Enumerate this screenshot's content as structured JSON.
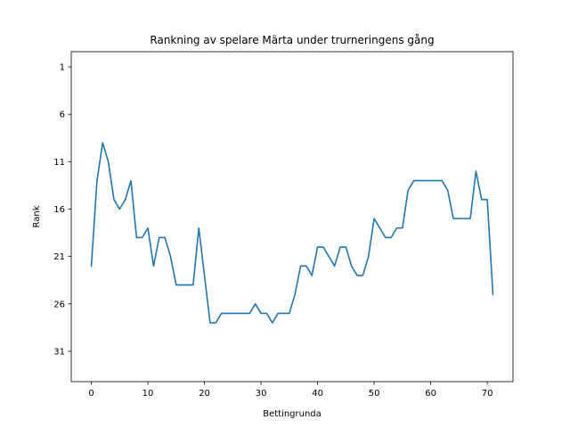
{
  "chart_data": {
    "type": "line",
    "title": "Rankning av spelare Märta under trurneringens gång",
    "xlabel": "Bettingrunda",
    "ylabel": "Rank",
    "xlim": [
      -3.55,
      74.55
    ],
    "ylim": [
      34.2,
      -0.6
    ],
    "y_inverted": true,
    "xticks": [
      0,
      10,
      20,
      30,
      40,
      50,
      60,
      70
    ],
    "yticks": [
      1,
      6,
      11,
      16,
      21,
      26,
      31
    ],
    "grid": false,
    "line_color": "#1f77b4",
    "series": [
      {
        "x": [
          0,
          1,
          2,
          3,
          4,
          5,
          6,
          7,
          8,
          9,
          10,
          11,
          12,
          13,
          14,
          15,
          16,
          17,
          18,
          19,
          20,
          21,
          22,
          23,
          24,
          25,
          26,
          27,
          28,
          29,
          30,
          31,
          32,
          33,
          34,
          35,
          36,
          37,
          38,
          39,
          40,
          41,
          42,
          43,
          44,
          45,
          46,
          47,
          48,
          49,
          50,
          51,
          52,
          53,
          54,
          55,
          56,
          57,
          58,
          59,
          60,
          61,
          62,
          63,
          64,
          65,
          66,
          67,
          68,
          69,
          70,
          71
        ],
        "y": [
          22,
          13,
          9,
          11,
          15,
          16,
          15,
          13,
          19,
          19,
          18,
          22,
          19,
          19,
          21,
          24,
          24,
          24,
          24,
          18,
          23,
          28,
          28,
          27,
          27,
          27,
          27,
          27,
          27,
          26,
          27,
          27,
          28,
          27,
          27,
          27,
          25,
          22,
          22,
          23,
          20,
          20,
          21,
          22,
          20,
          20,
          22,
          23,
          23,
          21,
          17,
          18,
          19,
          19,
          18,
          18,
          14,
          13,
          13,
          13,
          13,
          13,
          13,
          14,
          17,
          17,
          17,
          17,
          12,
          15,
          15,
          25
        ]
      }
    ]
  }
}
